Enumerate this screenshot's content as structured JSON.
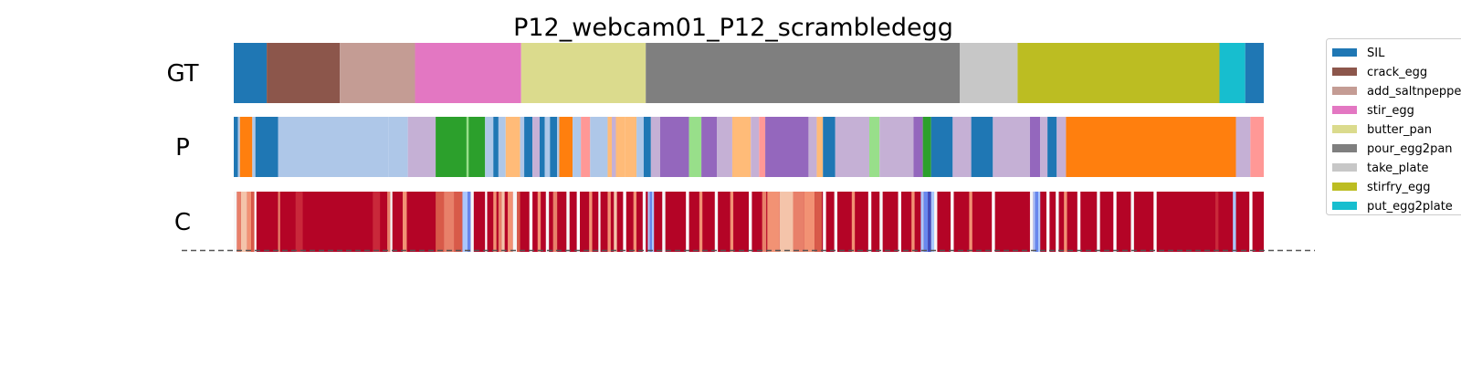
{
  "chart_data": {
    "type": "segmentation-timeline",
    "title": "P12_webcam01_P12_scrambledegg",
    "rows": [
      {
        "label": "GT",
        "segments": [
          {
            "start": 0.0,
            "end": 3.2,
            "action": "SIL"
          },
          {
            "start": 3.2,
            "end": 10.3,
            "action": "crack_egg"
          },
          {
            "start": 10.3,
            "end": 17.6,
            "action": "add_saltnpepper"
          },
          {
            "start": 17.6,
            "end": 27.9,
            "action": "stir_egg"
          },
          {
            "start": 27.9,
            "end": 40.0,
            "action": "butter_pan"
          },
          {
            "start": 40.0,
            "end": 70.5,
            "action": "pour_egg2pan"
          },
          {
            "start": 70.5,
            "end": 76.1,
            "action": "take_plate"
          },
          {
            "start": 76.1,
            "end": 95.7,
            "action": "stirfry_egg"
          },
          {
            "start": 95.7,
            "end": 98.2,
            "action": "put_egg2plate"
          },
          {
            "start": 98.2,
            "end": 100.0,
            "action": "SIL"
          }
        ]
      },
      {
        "label": "P",
        "segments": [
          {
            "start": 0.0,
            "end": 0.4,
            "color": "#1f77b4"
          },
          {
            "start": 0.4,
            "end": 0.6,
            "color": "#aec7e8"
          },
          {
            "start": 0.6,
            "end": 1.8,
            "color": "#ff7f0e"
          },
          {
            "start": 1.8,
            "end": 2.1,
            "color": "#aec7e8"
          },
          {
            "start": 2.1,
            "end": 4.3,
            "color": "#1f77b4"
          },
          {
            "start": 4.3,
            "end": 15.0,
            "color": "#aec7e8"
          },
          {
            "start": 15.0,
            "end": 16.9,
            "color": "#aec7e8"
          },
          {
            "start": 16.9,
            "end": 19.6,
            "color": "#c5b0d5"
          },
          {
            "start": 19.6,
            "end": 22.6,
            "color": "#2ca02c"
          },
          {
            "start": 22.6,
            "end": 22.8,
            "color": "#98df8a"
          },
          {
            "start": 22.8,
            "end": 24.4,
            "color": "#2ca02c"
          },
          {
            "start": 24.4,
            "end": 25.2,
            "color": "#aec7e8"
          },
          {
            "start": 25.2,
            "end": 25.7,
            "color": "#1f77b4"
          },
          {
            "start": 25.7,
            "end": 26.4,
            "color": "#aec7e8"
          },
          {
            "start": 26.4,
            "end": 27.8,
            "color": "#ffbb78"
          },
          {
            "start": 27.8,
            "end": 28.2,
            "color": "#aec7e8"
          },
          {
            "start": 28.2,
            "end": 29.0,
            "color": "#1f77b4"
          },
          {
            "start": 29.0,
            "end": 29.7,
            "color": "#c5b0d5"
          },
          {
            "start": 29.7,
            "end": 30.2,
            "color": "#1f77b4"
          },
          {
            "start": 30.2,
            "end": 30.7,
            "color": "#aec7e8"
          },
          {
            "start": 30.7,
            "end": 31.4,
            "color": "#1f77b4"
          },
          {
            "start": 31.4,
            "end": 31.6,
            "color": "#aec7e8"
          },
          {
            "start": 31.6,
            "end": 32.9,
            "color": "#ff7f0e"
          },
          {
            "start": 32.9,
            "end": 33.7,
            "color": "#aec7e8"
          },
          {
            "start": 33.7,
            "end": 34.6,
            "color": "#ff9896"
          },
          {
            "start": 34.6,
            "end": 36.3,
            "color": "#aec7e8"
          },
          {
            "start": 36.3,
            "end": 36.7,
            "color": "#ffbb78"
          },
          {
            "start": 36.7,
            "end": 37.1,
            "color": "#c5b0d5"
          },
          {
            "start": 37.1,
            "end": 38.0,
            "color": "#ffbb78"
          },
          {
            "start": 38.0,
            "end": 39.1,
            "color": "#ffbb78"
          },
          {
            "start": 39.1,
            "end": 39.8,
            "color": "#aec7e8"
          },
          {
            "start": 39.8,
            "end": 40.5,
            "color": "#1f77b4"
          },
          {
            "start": 40.5,
            "end": 41.4,
            "color": "#c5b0d5"
          },
          {
            "start": 41.4,
            "end": 44.2,
            "color": "#9467bd"
          },
          {
            "start": 44.2,
            "end": 45.4,
            "color": "#98df8a"
          },
          {
            "start": 45.4,
            "end": 46.9,
            "color": "#9467bd"
          },
          {
            "start": 46.9,
            "end": 48.4,
            "color": "#c5b0d5"
          },
          {
            "start": 48.4,
            "end": 50.2,
            "color": "#ffbb78"
          },
          {
            "start": 50.2,
            "end": 51.0,
            "color": "#c5b0d5"
          },
          {
            "start": 51.0,
            "end": 51.6,
            "color": "#ff9896"
          },
          {
            "start": 51.6,
            "end": 55.8,
            "color": "#9467bd"
          },
          {
            "start": 55.8,
            "end": 56.6,
            "color": "#c5b0d5"
          },
          {
            "start": 56.6,
            "end": 57.2,
            "color": "#ffbb78"
          },
          {
            "start": 57.2,
            "end": 58.4,
            "color": "#1f77b4"
          },
          {
            "start": 58.4,
            "end": 61.7,
            "color": "#c5b0d5"
          },
          {
            "start": 61.7,
            "end": 62.7,
            "color": "#98df8a"
          },
          {
            "start": 62.7,
            "end": 66.0,
            "color": "#c5b0d5"
          },
          {
            "start": 66.0,
            "end": 66.9,
            "color": "#9467bd"
          },
          {
            "start": 66.9,
            "end": 67.7,
            "color": "#2ca02c"
          },
          {
            "start": 67.7,
            "end": 69.8,
            "color": "#1f77b4"
          },
          {
            "start": 69.8,
            "end": 71.6,
            "color": "#c5b0d5"
          },
          {
            "start": 71.6,
            "end": 73.7,
            "color": "#1f77b4"
          },
          {
            "start": 73.7,
            "end": 77.3,
            "color": "#c5b0d5"
          },
          {
            "start": 77.3,
            "end": 78.3,
            "color": "#9467bd"
          },
          {
            "start": 78.3,
            "end": 79.0,
            "color": "#c5b0d5"
          },
          {
            "start": 79.0,
            "end": 79.9,
            "color": "#1f77b4"
          },
          {
            "start": 79.9,
            "end": 80.8,
            "color": "#c5b0d5"
          },
          {
            "start": 80.8,
            "end": 97.3,
            "color": "#ff7f0e"
          },
          {
            "start": 97.3,
            "end": 98.7,
            "color": "#c5b0d5"
          },
          {
            "start": 98.7,
            "end": 100.0,
            "color": "#ff9896"
          }
        ]
      },
      {
        "label": "C",
        "baseline_color": "#b40426",
        "segments": [
          {
            "start": 0.0,
            "end": 0.3,
            "color": "#f7f7f7"
          },
          {
            "start": 0.3,
            "end": 0.7,
            "color": "#e8806a"
          },
          {
            "start": 0.7,
            "end": 1.3,
            "color": "#f4c4aa"
          },
          {
            "start": 1.3,
            "end": 1.7,
            "color": "#f29274"
          },
          {
            "start": 1.7,
            "end": 2.0,
            "color": "#d85a49"
          },
          {
            "start": 2.0,
            "end": 2.2,
            "color": "#ffffff"
          },
          {
            "start": 4.3,
            "end": 4.5,
            "color": "#e8806a"
          },
          {
            "start": 6.0,
            "end": 6.7,
            "color": "#c9283a"
          },
          {
            "start": 13.5,
            "end": 14.2,
            "color": "#c9283a"
          },
          {
            "start": 14.9,
            "end": 15.2,
            "color": "#e8806a"
          },
          {
            "start": 15.2,
            "end": 15.4,
            "color": "#f7f7f7"
          },
          {
            "start": 16.4,
            "end": 16.8,
            "color": "#f29274"
          },
          {
            "start": 19.6,
            "end": 20.4,
            "color": "#d85a49"
          },
          {
            "start": 20.4,
            "end": 21.4,
            "color": "#e8806a"
          },
          {
            "start": 21.4,
            "end": 22.2,
            "color": "#d85a49"
          },
          {
            "start": 22.2,
            "end": 22.7,
            "color": "#aac7fd"
          },
          {
            "start": 22.7,
            "end": 23.0,
            "color": "#6788ee"
          },
          {
            "start": 23.0,
            "end": 23.3,
            "color": "#f7f7f7"
          },
          {
            "start": 24.4,
            "end": 24.6,
            "color": "#ffffff"
          },
          {
            "start": 25.2,
            "end": 25.5,
            "color": "#f29274"
          },
          {
            "start": 25.7,
            "end": 26.0,
            "color": "#e8806a"
          },
          {
            "start": 26.0,
            "end": 26.3,
            "color": "#f4c4aa"
          },
          {
            "start": 26.6,
            "end": 27.1,
            "color": "#f29274"
          },
          {
            "start": 27.1,
            "end": 27.5,
            "color": "#f7f7f7"
          },
          {
            "start": 27.5,
            "end": 27.8,
            "color": "#d85a49"
          },
          {
            "start": 28.7,
            "end": 29.0,
            "color": "#ffffff"
          },
          {
            "start": 29.5,
            "end": 29.8,
            "color": "#f29274"
          },
          {
            "start": 30.3,
            "end": 30.6,
            "color": "#f7f7f7"
          },
          {
            "start": 31.0,
            "end": 31.4,
            "color": "#e8806a"
          },
          {
            "start": 32.3,
            "end": 32.6,
            "color": "#f7f7f7"
          },
          {
            "start": 33.3,
            "end": 33.6,
            "color": "#ffffff"
          },
          {
            "start": 34.5,
            "end": 34.8,
            "color": "#f29274"
          },
          {
            "start": 35.4,
            "end": 35.6,
            "color": "#f7f7f7"
          },
          {
            "start": 36.3,
            "end": 36.6,
            "color": "#f29274"
          },
          {
            "start": 36.9,
            "end": 37.2,
            "color": "#f4c4aa"
          },
          {
            "start": 37.8,
            "end": 38.1,
            "color": "#ffffff"
          },
          {
            "start": 38.8,
            "end": 39.1,
            "color": "#f29274"
          },
          {
            "start": 39.7,
            "end": 40.0,
            "color": "#f7f7f7"
          },
          {
            "start": 40.2,
            "end": 40.4,
            "color": "#aac7fd"
          },
          {
            "start": 40.4,
            "end": 40.6,
            "color": "#6788ee"
          },
          {
            "start": 40.6,
            "end": 40.8,
            "color": "#aac7fd"
          },
          {
            "start": 41.6,
            "end": 41.9,
            "color": "#f7f7f7"
          },
          {
            "start": 43.9,
            "end": 44.2,
            "color": "#ffffff"
          },
          {
            "start": 45.2,
            "end": 45.5,
            "color": "#f29274"
          },
          {
            "start": 46.7,
            "end": 47.0,
            "color": "#f7f7f7"
          },
          {
            "start": 48.2,
            "end": 48.5,
            "color": "#f29274"
          },
          {
            "start": 50.0,
            "end": 50.3,
            "color": "#ffffff"
          },
          {
            "start": 51.3,
            "end": 51.7,
            "color": "#e8806a"
          },
          {
            "start": 51.8,
            "end": 53.0,
            "color": "#f29274"
          },
          {
            "start": 53.0,
            "end": 54.3,
            "color": "#f4c4aa"
          },
          {
            "start": 54.3,
            "end": 55.4,
            "color": "#e8806a"
          },
          {
            "start": 55.4,
            "end": 56.4,
            "color": "#f29274"
          },
          {
            "start": 56.4,
            "end": 57.1,
            "color": "#d85a49"
          },
          {
            "start": 57.2,
            "end": 57.5,
            "color": "#ffffff"
          },
          {
            "start": 58.3,
            "end": 58.6,
            "color": "#f7f7f7"
          },
          {
            "start": 60.0,
            "end": 60.3,
            "color": "#f29274"
          },
          {
            "start": 61.6,
            "end": 61.9,
            "color": "#ffffff"
          },
          {
            "start": 62.7,
            "end": 63.0,
            "color": "#f7f7f7"
          },
          {
            "start": 64.5,
            "end": 64.8,
            "color": "#ffffff"
          },
          {
            "start": 65.8,
            "end": 66.1,
            "color": "#f29274"
          },
          {
            "start": 66.7,
            "end": 67.0,
            "color": "#aac7fd"
          },
          {
            "start": 67.0,
            "end": 67.4,
            "color": "#6788ee"
          },
          {
            "start": 67.4,
            "end": 67.7,
            "color": "#3b4cc0"
          },
          {
            "start": 67.7,
            "end": 68.0,
            "color": "#aac7fd"
          },
          {
            "start": 68.0,
            "end": 68.3,
            "color": "#f7f7f7"
          },
          {
            "start": 69.6,
            "end": 69.9,
            "color": "#ffffff"
          },
          {
            "start": 71.4,
            "end": 71.7,
            "color": "#f29274"
          },
          {
            "start": 73.6,
            "end": 73.9,
            "color": "#ffffff"
          },
          {
            "start": 77.3,
            "end": 77.6,
            "color": "#f7f7f7"
          },
          {
            "start": 77.6,
            "end": 77.8,
            "color": "#aac7fd"
          },
          {
            "start": 77.8,
            "end": 78.1,
            "color": "#6788ee"
          },
          {
            "start": 78.1,
            "end": 78.3,
            "color": "#aac7fd"
          },
          {
            "start": 78.9,
            "end": 79.2,
            "color": "#ffffff"
          },
          {
            "start": 79.8,
            "end": 80.1,
            "color": "#f7f7f7"
          },
          {
            "start": 80.6,
            "end": 80.9,
            "color": "#f29274"
          },
          {
            "start": 81.9,
            "end": 82.2,
            "color": "#ffffff"
          },
          {
            "start": 83.8,
            "end": 84.1,
            "color": "#f7f7f7"
          },
          {
            "start": 85.4,
            "end": 85.7,
            "color": "#ffffff"
          },
          {
            "start": 87.1,
            "end": 87.4,
            "color": "#f7f7f7"
          },
          {
            "start": 89.3,
            "end": 89.6,
            "color": "#ffffff"
          },
          {
            "start": 95.3,
            "end": 95.6,
            "color": "#c9283a"
          },
          {
            "start": 97.0,
            "end": 97.3,
            "color": "#aac7fd"
          },
          {
            "start": 98.6,
            "end": 98.9,
            "color": "#ffffff"
          }
        ]
      }
    ],
    "legend": [
      {
        "label": "SIL",
        "color": "#1f77b4"
      },
      {
        "label": "crack_egg",
        "color": "#8c564b"
      },
      {
        "label": "add_saltnpepper",
        "color": "#c49c94"
      },
      {
        "label": "stir_egg",
        "color": "#e377c2"
      },
      {
        "label": "butter_pan",
        "color": "#dbdb8d"
      },
      {
        "label": "pour_egg2pan",
        "color": "#7f7f7f"
      },
      {
        "label": "take_plate",
        "color": "#c7c7c7"
      },
      {
        "label": "stirfry_egg",
        "color": "#bcbd22"
      },
      {
        "label": "put_egg2plate",
        "color": "#17becf"
      }
    ],
    "legend_placement": "right, clipped at page edge",
    "baseline_dashed": true,
    "x_range": [
      0,
      100
    ]
  }
}
